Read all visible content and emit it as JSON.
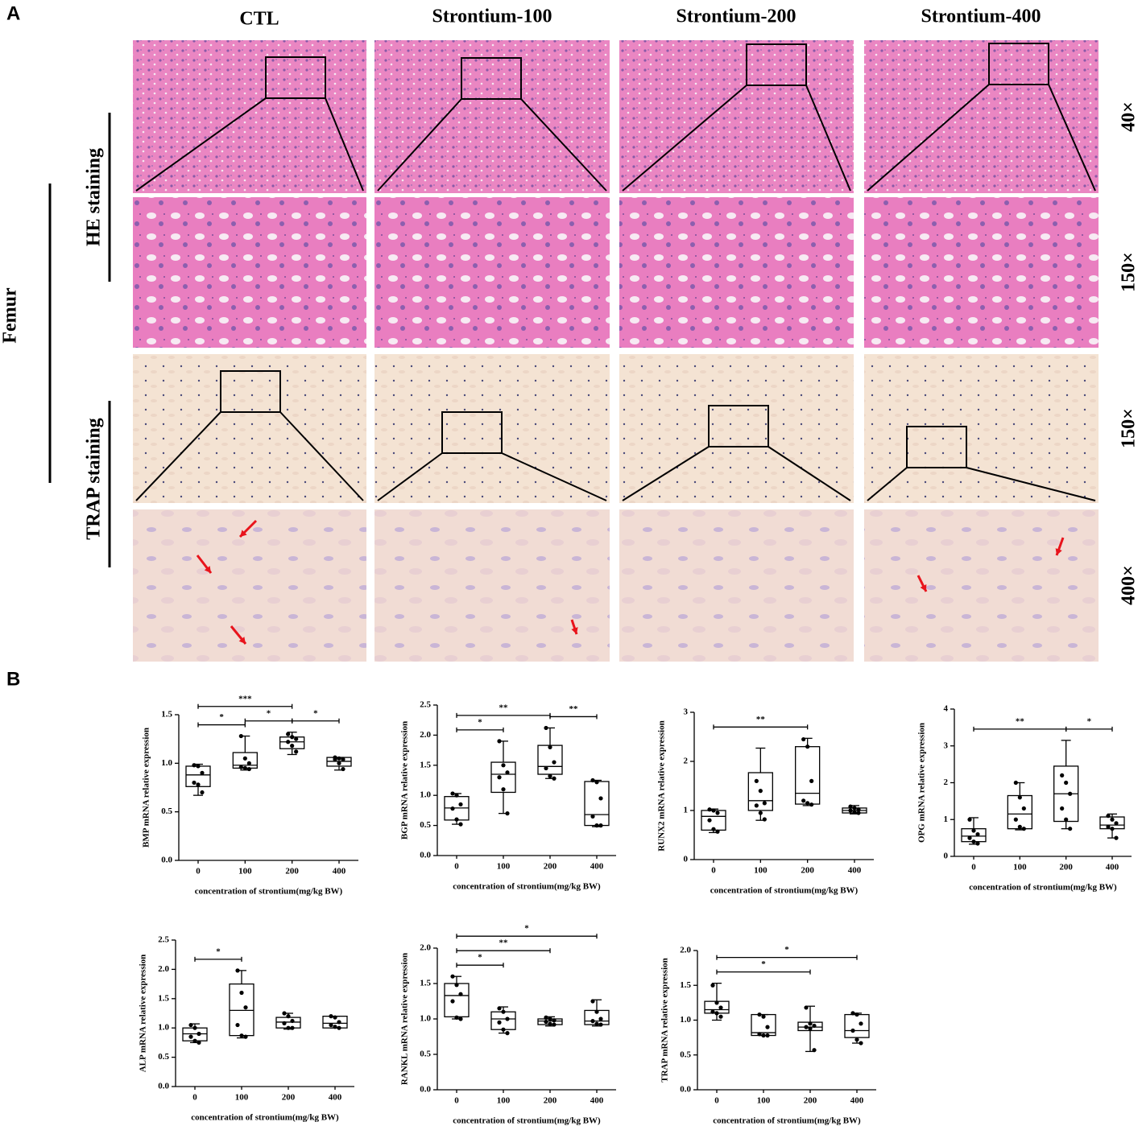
{
  "panel_a": {
    "label": "A",
    "columns": [
      "CTL",
      "Strontium-100",
      "Strontium-200",
      "Strontium-400"
    ],
    "magnifications": [
      "40×",
      "150×",
      "150×",
      "400×"
    ],
    "tissue": "Femur",
    "stains": [
      "HE staining",
      "TRAP staining"
    ]
  },
  "panel_b": {
    "label": "B"
  },
  "chart_data": [
    {
      "type": "box",
      "ylabel": "BMP mRNA relative expression",
      "xlabel": "concentration of strontium(mg/kg BW)",
      "categories": [
        "0",
        "100",
        "200",
        "400"
      ],
      "ylim": [
        0,
        1.5
      ],
      "yticks": [
        {
          "value": 0,
          "label": "0.0"
        },
        {
          "value": 0.5,
          "label": "0.5"
        },
        {
          "value": 1,
          "label": "1.0"
        },
        {
          "value": 1.5,
          "label": "1.5"
        }
      ],
      "boxes": [
        {
          "low": 0.67,
          "q1": 0.76,
          "median": 0.88,
          "q3": 0.97,
          "high": 0.99
        },
        {
          "low": 0.93,
          "q1": 0.95,
          "median": 0.98,
          "q3": 1.11,
          "high": 1.28
        },
        {
          "low": 1.09,
          "q1": 1.15,
          "median": 1.22,
          "q3": 1.27,
          "high": 1.32
        },
        {
          "low": 0.93,
          "q1": 0.97,
          "median": 1.02,
          "q3": 1.06,
          "high": 1.06
        }
      ],
      "points": [
        [
          0.98,
          0.97,
          0.9,
          0.8,
          0.78,
          0.7
        ],
        [
          1.28,
          1.05,
          1.0,
          0.96,
          0.95,
          0.94
        ],
        [
          1.3,
          1.27,
          1.25,
          1.22,
          1.18,
          1.12
        ],
        [
          1.06,
          1.05,
          1.04,
          1.04,
          1.0,
          0.94
        ]
      ],
      "significance": [
        {
          "between": [
            "0",
            "100"
          ],
          "label": "*"
        },
        {
          "between": [
            "100",
            "200"
          ],
          "label": "*"
        },
        {
          "between": [
            "200",
            "400"
          ],
          "label": "*"
        },
        {
          "between": [
            "0",
            "200"
          ],
          "label": "***"
        }
      ]
    },
    {
      "type": "box",
      "ylabel": "BGP mRNA relative expression",
      "xlabel": "concentration of strontium(mg/kg BW)",
      "categories": [
        "0",
        "100",
        "200",
        "400"
      ],
      "ylim": [
        0,
        2.5
      ],
      "yticks": [
        {
          "value": 0,
          "label": "0.0"
        },
        {
          "value": 0.5,
          "label": "0.5"
        },
        {
          "value": 1,
          "label": "1.0"
        },
        {
          "value": 1.5,
          "label": "1.5"
        },
        {
          "value": 2,
          "label": "2.0"
        },
        {
          "value": 2.5,
          "label": "2.5"
        }
      ],
      "boxes": [
        {
          "low": 0.52,
          "q1": 0.59,
          "median": 0.79,
          "q3": 0.98,
          "high": 1.03
        },
        {
          "low": 0.7,
          "q1": 1.05,
          "median": 1.35,
          "q3": 1.55,
          "high": 1.9
        },
        {
          "low": 1.28,
          "q1": 1.35,
          "median": 1.48,
          "q3": 1.83,
          "high": 2.12
        },
        {
          "low": 0.48,
          "q1": 0.5,
          "median": 0.68,
          "q3": 1.23,
          "high": 1.25
        }
      ],
      "points": [
        [
          1.03,
          1.0,
          0.85,
          0.78,
          0.6,
          0.52
        ],
        [
          1.9,
          1.5,
          1.38,
          1.3,
          1.1,
          0.7
        ],
        [
          2.12,
          1.8,
          1.55,
          1.45,
          1.32,
          1.28
        ],
        [
          1.25,
          1.22,
          0.95,
          0.65,
          0.5,
          0.5
        ]
      ],
      "significance": [
        {
          "between": [
            "0",
            "100"
          ],
          "label": "*"
        },
        {
          "between": [
            "0",
            "200"
          ],
          "label": "**"
        },
        {
          "between": [
            "200",
            "400"
          ],
          "label": "**"
        }
      ]
    },
    {
      "type": "box",
      "ylabel": "RUNX2 mRNA relative expression",
      "xlabel": "concentration of strontium(mg/kg BW)",
      "categories": [
        "0",
        "100",
        "200",
        "400"
      ],
      "ylim": [
        0,
        3
      ],
      "yticks": [
        0,
        1,
        2,
        3
      ],
      "boxes": [
        {
          "low": 0.55,
          "q1": 0.6,
          "median": 0.88,
          "q3": 1.0,
          "high": 1.03
        },
        {
          "low": 0.8,
          "q1": 1.0,
          "median": 1.2,
          "q3": 1.77,
          "high": 2.27
        },
        {
          "low": 1.1,
          "q1": 1.13,
          "median": 1.35,
          "q3": 2.3,
          "high": 2.47
        },
        {
          "low": 0.93,
          "q1": 0.95,
          "median": 1.0,
          "q3": 1.05,
          "high": 1.1
        }
      ],
      "points": [
        [
          1.02,
          1.0,
          0.95,
          0.8,
          0.62,
          0.57
        ],
        [
          1.6,
          1.4,
          1.15,
          1.1,
          0.95,
          0.82
        ],
        [
          2.45,
          2.3,
          1.6,
          1.2,
          1.15,
          1.12
        ],
        [
          1.08,
          1.05,
          1.02,
          1.0,
          0.97,
          0.95
        ]
      ],
      "significance": [
        {
          "between": [
            "0",
            "200"
          ],
          "label": "**"
        }
      ]
    },
    {
      "type": "box",
      "ylabel": "OPG mRNA relative expression",
      "xlabel": "concentration of strontium(mg/kg BW)",
      "categories": [
        "0",
        "100",
        "200",
        "400"
      ],
      "ylim": [
        0,
        4
      ],
      "yticks": [
        0,
        1,
        2,
        3,
        4
      ],
      "boxes": [
        {
          "low": 0.33,
          "q1": 0.4,
          "median": 0.55,
          "q3": 0.75,
          "high": 1.05
        },
        {
          "low": 0.72,
          "q1": 0.75,
          "median": 1.15,
          "q3": 1.65,
          "high": 2.0
        },
        {
          "low": 0.75,
          "q1": 0.95,
          "median": 1.7,
          "q3": 2.45,
          "high": 3.15
        },
        {
          "low": 0.5,
          "q1": 0.75,
          "median": 0.85,
          "q3": 1.07,
          "high": 1.15
        }
      ],
      "points": [
        [
          1.0,
          0.7,
          0.6,
          0.5,
          0.4,
          0.35
        ],
        [
          2.0,
          1.6,
          1.3,
          1.0,
          0.8,
          0.75
        ],
        [
          2.2,
          2.0,
          1.7,
          1.3,
          1.0,
          0.75
        ],
        [
          1.1,
          1.0,
          0.9,
          0.8,
          0.75,
          0.5
        ]
      ],
      "significance": [
        {
          "between": [
            "0",
            "200"
          ],
          "label": "**"
        },
        {
          "between": [
            "200",
            "400"
          ],
          "label": "*"
        }
      ]
    },
    {
      "type": "box",
      "ylabel": "ALP mRNA relative expression",
      "xlabel": "concentration of strontium(mg/kg BW)",
      "categories": [
        "0",
        "100",
        "200",
        "400"
      ],
      "ylim": [
        0,
        2.5
      ],
      "yticks": [
        {
          "value": 0,
          "label": "0.0"
        },
        {
          "value": 0.5,
          "label": "0.5"
        },
        {
          "value": 1,
          "label": "1.0"
        },
        {
          "value": 1.5,
          "label": "1.5"
        },
        {
          "value": 2,
          "label": "2.0"
        },
        {
          "value": 2.5,
          "label": "2.5"
        }
      ],
      "boxes": [
        {
          "low": 0.75,
          "q1": 0.78,
          "median": 0.9,
          "q3": 1.0,
          "high": 1.07
        },
        {
          "low": 0.83,
          "q1": 0.87,
          "median": 1.3,
          "q3": 1.75,
          "high": 1.98
        },
        {
          "low": 0.98,
          "q1": 1.0,
          "median": 1.1,
          "q3": 1.18,
          "high": 1.25
        },
        {
          "low": 1.0,
          "q1": 1.0,
          "median": 1.08,
          "q3": 1.2,
          "high": 1.2
        }
      ],
      "points": [
        [
          1.05,
          1.0,
          0.9,
          0.85,
          0.78,
          0.75
        ],
        [
          1.98,
          1.6,
          1.35,
          1.05,
          0.87,
          0.85
        ],
        [
          1.25,
          1.2,
          1.12,
          1.08,
          1.0,
          1.0
        ],
        [
          1.2,
          1.18,
          1.1,
          1.05,
          1.02,
          1.0
        ]
      ],
      "significance": [
        {
          "between": [
            "0",
            "100"
          ],
          "label": "*"
        }
      ]
    },
    {
      "type": "box",
      "ylabel": "RANKL mRNA relative expression",
      "xlabel": "concentration of strontium(mg/kg BW)",
      "categories": [
        "0",
        "100",
        "200",
        "400"
      ],
      "ylim": [
        0,
        2
      ],
      "yticks": [
        {
          "value": 0,
          "label": "0.0"
        },
        {
          "value": 0.5,
          "label": "0.5"
        },
        {
          "value": 1,
          "label": "1.0"
        },
        {
          "value": 1.5,
          "label": "1.5"
        },
        {
          "value": 2,
          "label": "2.0"
        }
      ],
      "boxes": [
        {
          "low": 1.0,
          "q1": 1.03,
          "median": 1.33,
          "q3": 1.5,
          "high": 1.6
        },
        {
          "low": 0.8,
          "q1": 0.85,
          "median": 1.0,
          "q3": 1.1,
          "high": 1.17
        },
        {
          "low": 0.9,
          "q1": 0.92,
          "median": 0.97,
          "q3": 1.0,
          "high": 1.03
        },
        {
          "low": 0.9,
          "q1": 0.92,
          "median": 0.97,
          "q3": 1.12,
          "high": 1.27
        }
      ],
      "points": [
        [
          1.6,
          1.48,
          1.35,
          1.25,
          1.02,
          1.0
        ],
        [
          1.15,
          1.1,
          1.0,
          0.95,
          0.85,
          0.8
        ],
        [
          1.02,
          1.0,
          0.98,
          0.96,
          0.93,
          0.92
        ],
        [
          1.25,
          1.1,
          1.0,
          0.97,
          0.93,
          0.92
        ]
      ],
      "significance": [
        {
          "between": [
            "0",
            "100"
          ],
          "label": "*"
        },
        {
          "between": [
            "0",
            "200"
          ],
          "label": "**"
        },
        {
          "between": [
            "0",
            "400"
          ],
          "label": "*"
        }
      ]
    },
    {
      "type": "box",
      "ylabel": "TRAP mRNA relative expression",
      "xlabel": "concentration of strontium(mg/kg BW)",
      "categories": [
        "0",
        "100",
        "200",
        "400"
      ],
      "ylim": [
        0,
        2
      ],
      "yticks": [
        {
          "value": 0,
          "label": "0.0"
        },
        {
          "value": 0.5,
          "label": "0.5"
        },
        {
          "value": 1,
          "label": "1.0"
        },
        {
          "value": 1.5,
          "label": "1.5"
        },
        {
          "value": 2,
          "label": "2.0"
        }
      ],
      "boxes": [
        {
          "low": 1.0,
          "q1": 1.1,
          "median": 1.15,
          "q3": 1.27,
          "high": 1.53
        },
        {
          "low": 0.78,
          "q1": 0.78,
          "median": 0.82,
          "q3": 1.08,
          "high": 1.08
        },
        {
          "low": 0.55,
          "q1": 0.85,
          "median": 0.9,
          "q3": 0.97,
          "high": 1.2
        },
        {
          "low": 0.67,
          "q1": 0.75,
          "median": 0.85,
          "q3": 1.08,
          "high": 1.1
        }
      ],
      "points": [
        [
          1.5,
          1.25,
          1.18,
          1.12,
          1.1,
          1.05
        ],
        [
          1.08,
          1.05,
          0.9,
          0.8,
          0.78,
          0.78
        ],
        [
          1.18,
          0.95,
          0.92,
          0.9,
          0.88,
          0.57
        ],
        [
          1.1,
          1.08,
          0.95,
          0.85,
          0.72,
          0.67
        ]
      ],
      "significance": [
        {
          "between": [
            "0",
            "200"
          ],
          "label": "*"
        },
        {
          "between": [
            "0",
            "400"
          ],
          "label": "*"
        }
      ]
    }
  ]
}
